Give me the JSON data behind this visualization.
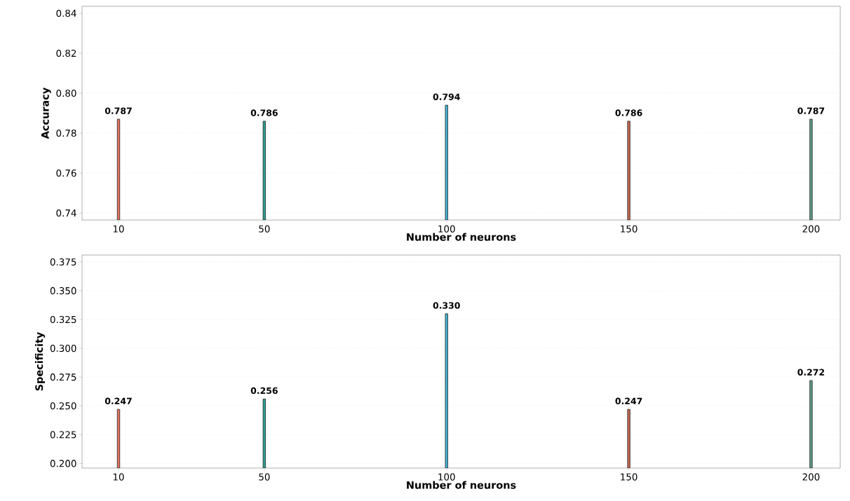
{
  "chart_data": [
    {
      "type": "bar",
      "xlabel": "Number of neurons",
      "ylabel": "Accuracy",
      "x": [
        10,
        50,
        100,
        150,
        200
      ],
      "values": [
        0.787,
        0.786,
        0.794,
        0.786,
        0.787
      ],
      "value_labels": [
        "0.787",
        "0.786",
        "0.794",
        "0.786",
        "0.787"
      ],
      "colors": [
        "#e8705c",
        "#2a9d8f",
        "#45b3d6",
        "#c86a4e",
        "#5e9c88"
      ],
      "xlim": [
        0,
        208
      ],
      "xticks": [
        10,
        50,
        100,
        150,
        200
      ],
      "ylim": [
        0.7365,
        0.8435
      ],
      "yticks": [
        0.74,
        0.76,
        0.78,
        {
          "value": 0.8,
          "label": "0.80"
        },
        0.82,
        0.84
      ],
      "grid": "y"
    },
    {
      "type": "bar",
      "xlabel": "Number of neurons",
      "ylabel": "Specificity",
      "x": [
        10,
        50,
        100,
        150,
        200
      ],
      "values": [
        0.247,
        0.256,
        0.33,
        0.247,
        0.272
      ],
      "value_labels": [
        "0.247",
        "0.256",
        "0.330",
        "0.247",
        "0.272"
      ],
      "colors": [
        "#e8705c",
        "#2a9d8f",
        "#45b3d6",
        "#c86a4e",
        "#5e9c88"
      ],
      "xlim": [
        0,
        208
      ],
      "xticks": [
        10,
        50,
        100,
        150,
        200
      ],
      "ylim": [
        0.196,
        0.381
      ],
      "yticks": [
        {
          "value": 0.2,
          "label": "0.200"
        },
        0.225,
        {
          "value": 0.25,
          "label": "0.250"
        },
        0.275,
        {
          "value": 0.3,
          "label": "0.300"
        },
        0.325,
        {
          "value": 0.35,
          "label": "0.350"
        },
        0.375
      ],
      "grid": "y"
    }
  ]
}
